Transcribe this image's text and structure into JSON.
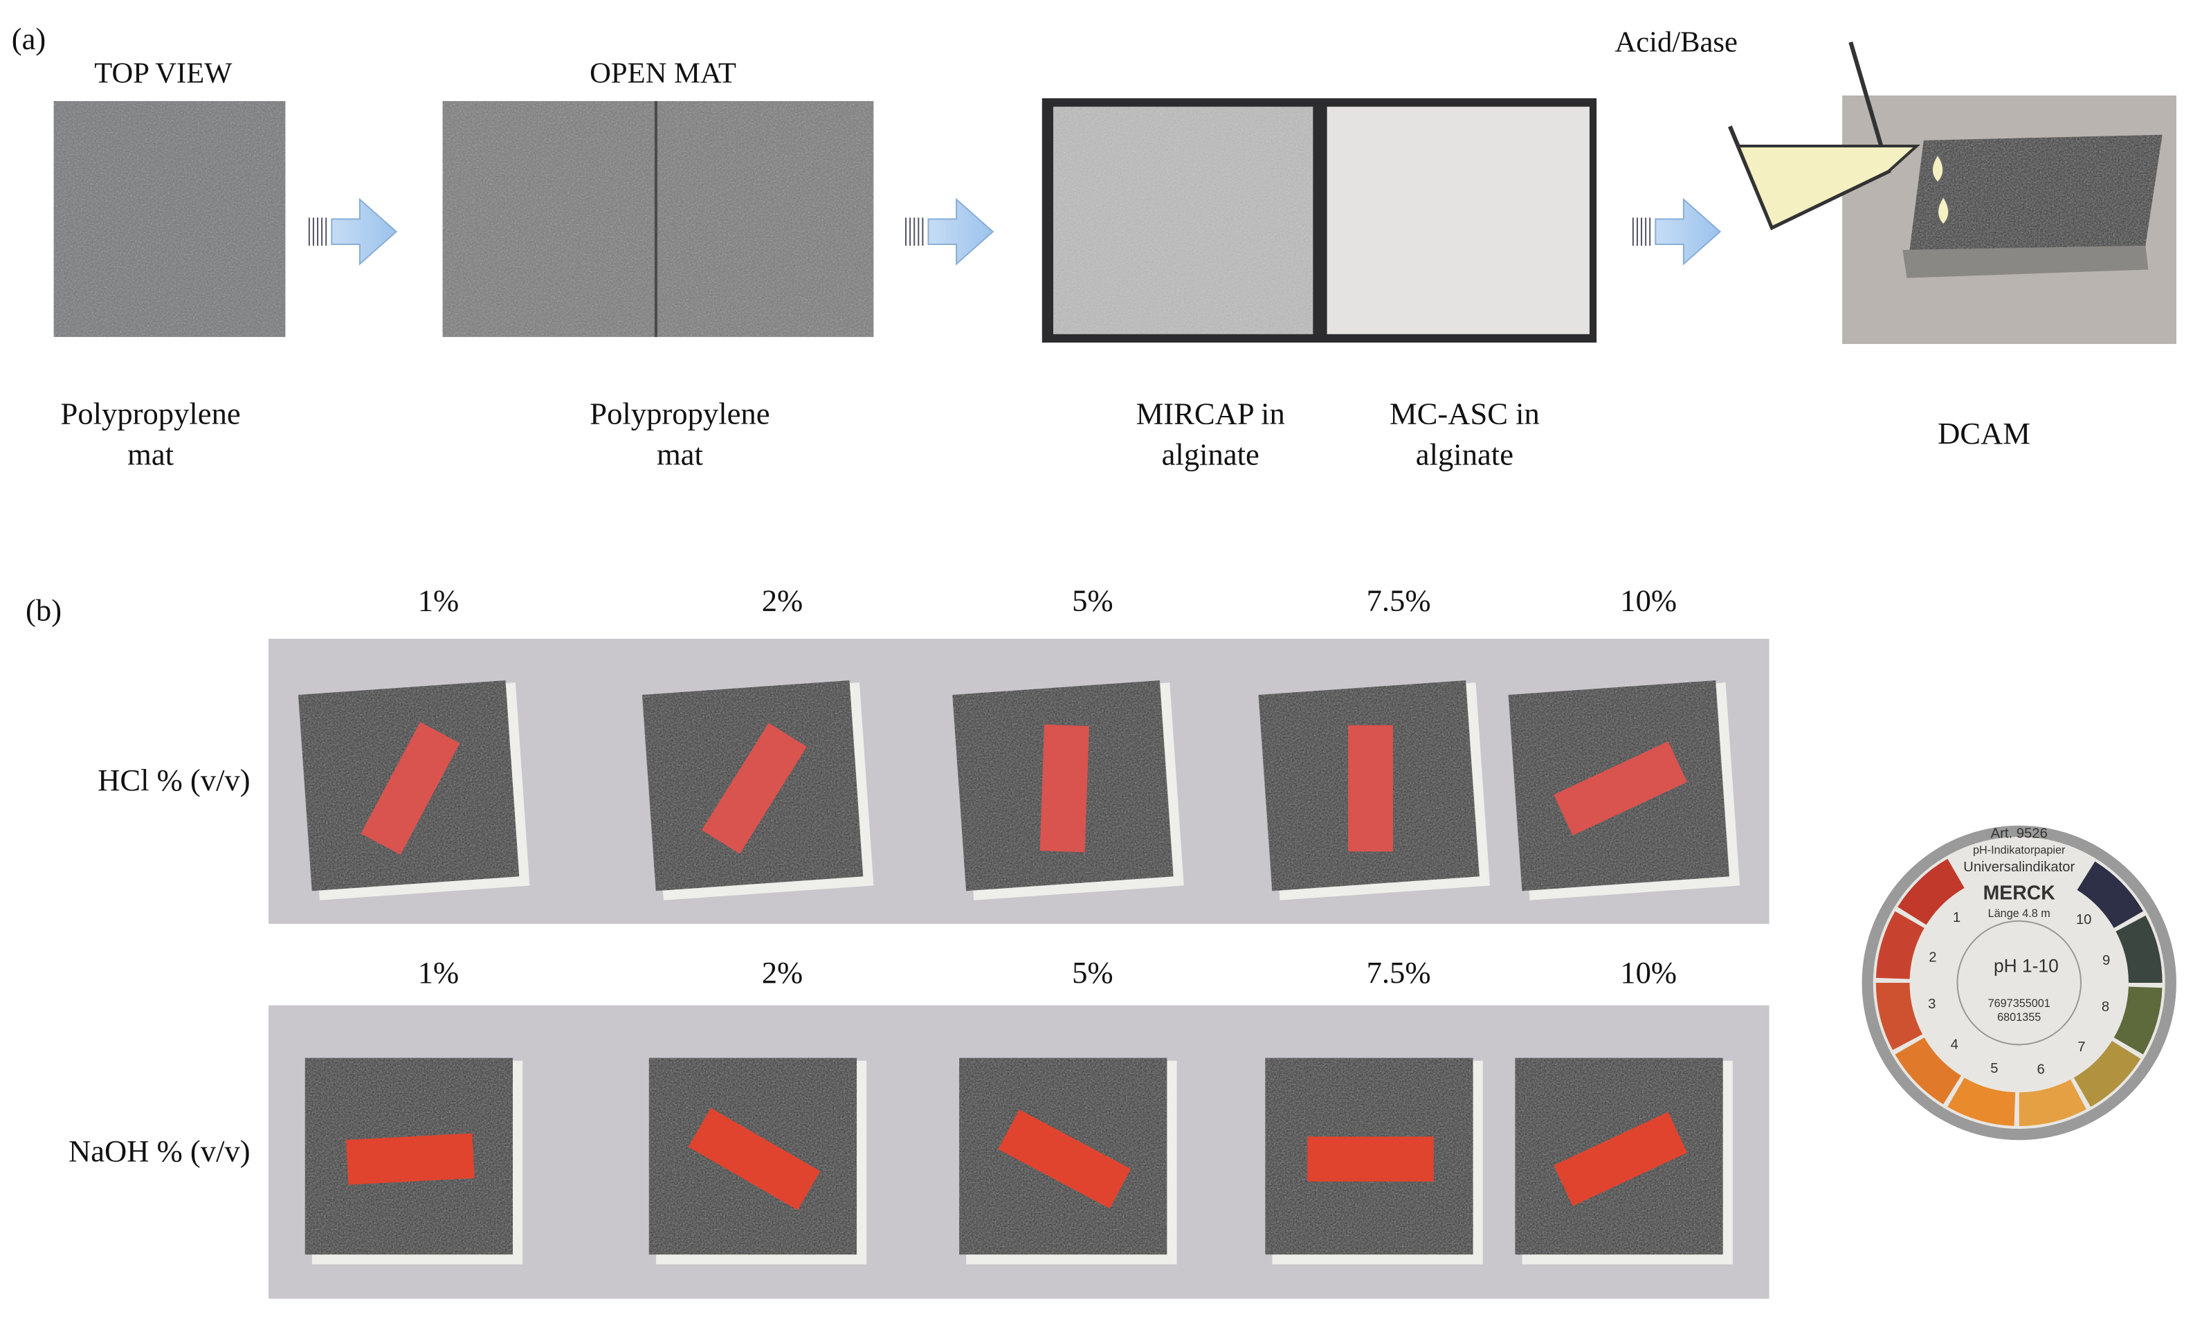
{
  "panel_a": {
    "label": "(a)",
    "headings": [
      "TOP VIEW",
      "OPEN MAT"
    ],
    "pour_label": "Acid/Base",
    "captions": [
      [
        "Polypropylene",
        "mat"
      ],
      [
        "Polypropylene",
        "mat"
      ],
      [
        "MIRCAP in",
        "alginate"
      ],
      [
        "MC-ASC in",
        "alginate"
      ],
      [
        "DCAM"
      ]
    ]
  },
  "panel_b": {
    "label": "(b)",
    "rows": [
      {
        "label": "HCl % (v/v)",
        "concentrations": [
          "1%",
          "2%",
          "5%",
          "7.5%",
          "10%"
        ]
      },
      {
        "label": "NaOH % (v/v)",
        "concentrations": [
          "1%",
          "2%",
          "5%",
          "7.5%",
          "10%"
        ]
      }
    ],
    "ph_indicator": {
      "article": "Art. 9526",
      "paper": "pH-Indikatorpapier",
      "name": "Universalindikator",
      "brand": "MERCK",
      "length": "Länge 4.8 m",
      "range": "pH 1-10",
      "codes": [
        "7697355001",
        "6801355"
      ],
      "scale": [
        "1",
        "2",
        "3",
        "4",
        "5",
        "6",
        "7",
        "8",
        "9",
        "10"
      ]
    }
  }
}
